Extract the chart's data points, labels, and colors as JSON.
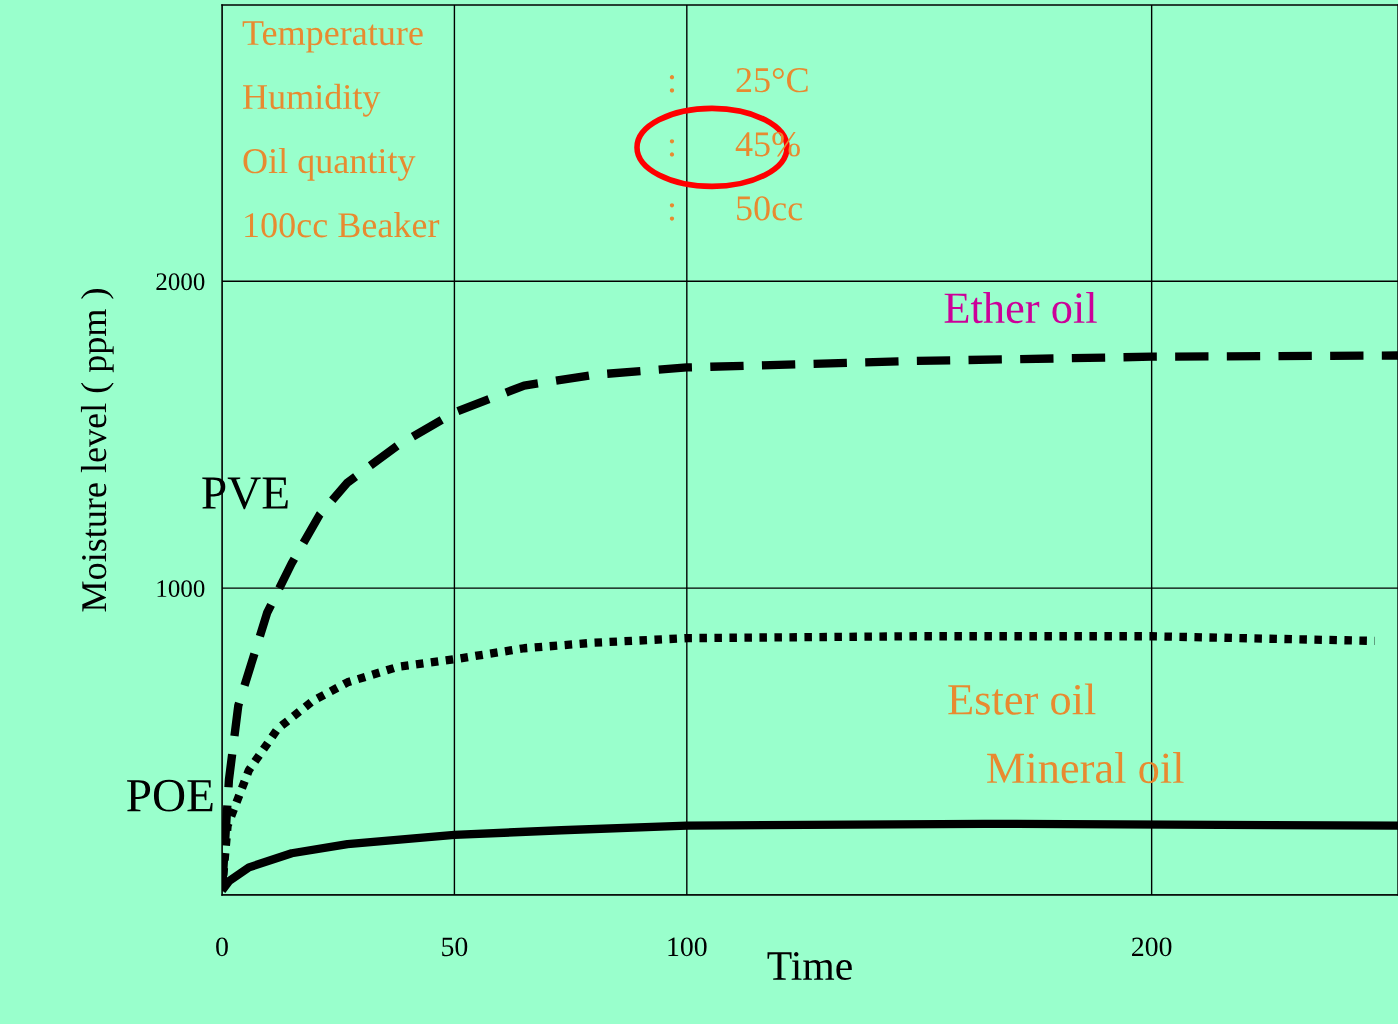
{
  "chart_data": {
    "type": "line",
    "xlabel": "Time",
    "ylabel": "Moisture level ( ppm )",
    "x": [
      0,
      1.5,
      3.5,
      9.7,
      15,
      21,
      27,
      38,
      50,
      65,
      80,
      100,
      149,
      200,
      253
    ],
    "series": [
      {
        "color": "#000000",
        "line_style": "dashed",
        "values": [
          15,
          376,
          617,
          919,
          1081,
          1239,
          1344,
          1467,
          1572,
          1660,
          1695,
          1719,
          1740,
          1754,
          1758
        ]
      },
      {
        "color": "#000000",
        "line_style": "dotted",
        "x": [
          0,
          1.2,
          5.8,
          12,
          19.6,
          27,
          38,
          50,
          65,
          80,
          100,
          149,
          200,
          248
        ],
        "values": [
          15,
          226,
          407,
          542,
          633,
          693,
          744,
          768,
          804,
          822,
          837,
          843,
          843,
          828
        ]
      },
      {
        "color": "#000000",
        "line_style": "solid",
        "x": [
          0,
          1.5,
          5.8,
          15,
          27,
          50,
          73,
          100,
          164,
          253
        ],
        "values": [
          15,
          45,
          90,
          136,
          166,
          196,
          211,
          226,
          232,
          226
        ]
      }
    ],
    "xlim": [
      0,
      253
    ],
    "xticks": [
      0,
      50,
      100,
      200
    ],
    "ylim": [
      0,
      2900
    ],
    "yticks": [
      {
        "value": 0,
        "label": null
      },
      1000,
      2000
    ],
    "grid": true,
    "annotations": [
      "Temperature",
      "Humidity",
      "Oil quantity",
      "100cc Beaker",
      ":",
      ":",
      ":",
      "25°C",
      "45%",
      "50cc",
      "Ether oil",
      "PVE",
      "Ester oil",
      "Mineral oil",
      "POE"
    ]
  }
}
